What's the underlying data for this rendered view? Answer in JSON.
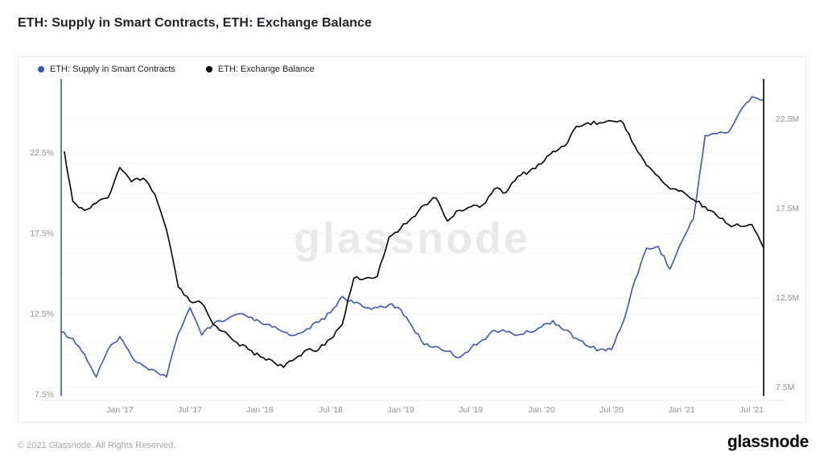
{
  "title": "ETH: Supply in Smart Contracts, ETH: Exchange Balance",
  "watermark": "glassnode",
  "legend": {
    "items": [
      {
        "label": "ETH: Supply in Smart Contracts",
        "color": "#3b54c0"
      },
      {
        "label": "ETH: Exchange Balance",
        "color": "#000000"
      }
    ]
  },
  "footer": {
    "copyright": "© 2021 Glassnode. All Rights Reserved.",
    "logo": "glassnode"
  },
  "chart_data": {
    "type": "line",
    "title": "ETH: Supply in Smart Contracts, ETH: Exchange Balance",
    "grid": "faint horizontal gridlines",
    "legend_position": "top-left",
    "x_unit": "month",
    "x": [
      "Aug '16",
      "Sep '16",
      "Oct '16",
      "Nov '16",
      "Dec '16",
      "Jan '17",
      "Feb '17",
      "Mar '17",
      "Apr '17",
      "May '17",
      "Jun '17",
      "Jul '17",
      "Aug '17",
      "Sep '17",
      "Oct '17",
      "Nov '17",
      "Dec '17",
      "Jan '18",
      "Feb '18",
      "Mar '18",
      "Apr '18",
      "May '18",
      "Jun '18",
      "Jul '18",
      "Aug '18",
      "Sep '18",
      "Oct '18",
      "Nov '18",
      "Dec '18",
      "Jan '19",
      "Feb '19",
      "Mar '19",
      "Apr '19",
      "May '19",
      "Jun '19",
      "Jul '19",
      "Aug '19",
      "Sep '19",
      "Oct '19",
      "Nov '19",
      "Dec '19",
      "Jan '20",
      "Feb '20",
      "Mar '20",
      "Apr '20",
      "May '20",
      "Jun '20",
      "Jul '20",
      "Aug '20",
      "Sep '20",
      "Oct '20",
      "Nov '20",
      "Dec '20",
      "Jan '21",
      "Feb '21",
      "Mar '21",
      "Apr '21",
      "May '21",
      "Jun '21",
      "Jul '21",
      "Aug '21"
    ],
    "series": [
      {
        "name": "ETH: Supply in Smart Contracts",
        "color": "#3b54c0",
        "axis": "left",
        "unit": "% of supply",
        "start_artifact_vertical_line": true,
        "values": [
          11.4,
          11.0,
          10.0,
          8.6,
          10.3,
          11.1,
          9.9,
          9.3,
          9.0,
          8.6,
          11.3,
          12.9,
          11.2,
          11.9,
          12.1,
          12.5,
          12.3,
          12.0,
          11.7,
          11.4,
          11.2,
          11.6,
          12.0,
          12.6,
          13.6,
          13.2,
          12.9,
          12.9,
          13.1,
          12.8,
          11.7,
          10.6,
          10.5,
          10.2,
          9.8,
          10.4,
          10.9,
          11.5,
          11.4,
          11.2,
          11.4,
          11.7,
          12.1,
          11.5,
          11.0,
          10.5,
          10.3,
          10.3,
          12.0,
          14.6,
          16.6,
          16.7,
          15.3,
          17.0,
          18.4,
          23.6,
          23.7,
          23.8,
          25.1,
          26.0,
          25.8
        ]
      },
      {
        "name": "ETH: Exchange Balance",
        "color": "#000000",
        "axis": "right",
        "unit": "M ETH",
        "end_artifact_vertical_line": true,
        "values": [
          20.7,
          17.9,
          17.4,
          17.8,
          18.1,
          19.8,
          19.0,
          19.2,
          18.3,
          16.3,
          13.1,
          12.3,
          12.2,
          11.0,
          10.6,
          10.0,
          9.6,
          9.2,
          9.0,
          8.6,
          9.1,
          9.6,
          9.6,
          10.2,
          11.0,
          13.6,
          13.6,
          13.7,
          15.9,
          16.4,
          17.0,
          17.7,
          18.1,
          16.8,
          17.4,
          17.6,
          17.7,
          18.6,
          18.4,
          19.3,
          19.6,
          20.0,
          20.7,
          21.0,
          22.1,
          22.3,
          22.3,
          22.4,
          22.3,
          21.0,
          19.9,
          19.3,
          18.6,
          18.5,
          18.0,
          17.6,
          17.1,
          16.6,
          16.5,
          16.6,
          15.3
        ]
      }
    ],
    "left_axis": {
      "unit": "%",
      "visible_range": [
        7.2,
        27.1
      ],
      "ticks": [
        {
          "label": "22.5%",
          "value": 22.5
        },
        {
          "label": "17.5%",
          "value": 17.5
        },
        {
          "label": "12.5%",
          "value": 12.5
        },
        {
          "label": "7.5%",
          "value": 7.5
        }
      ]
    },
    "right_axis": {
      "unit": "M",
      "visible_range": [
        7.5,
        25.7
      ],
      "ticks": [
        {
          "label": "22.5M",
          "value": 22.5
        },
        {
          "label": "17.5M",
          "value": 17.5
        },
        {
          "label": "12.5M",
          "value": 12.5
        },
        {
          "label": "7.5M",
          "value": 7.5
        }
      ]
    },
    "x_ticks": [
      {
        "label": "Jan '17",
        "month_index": 5
      },
      {
        "label": "Jul '17",
        "month_index": 11
      },
      {
        "label": "Jan '18",
        "month_index": 17
      },
      {
        "label": "Jul '18",
        "month_index": 23
      },
      {
        "label": "Jan '19",
        "month_index": 29
      },
      {
        "label": "Jul '19",
        "month_index": 35
      },
      {
        "label": "Jan '20",
        "month_index": 41
      },
      {
        "label": "Jul '20",
        "month_index": 47
      },
      {
        "label": "Jan '21",
        "month_index": 53
      },
      {
        "label": "Jul '21",
        "month_index": 59
      }
    ]
  }
}
